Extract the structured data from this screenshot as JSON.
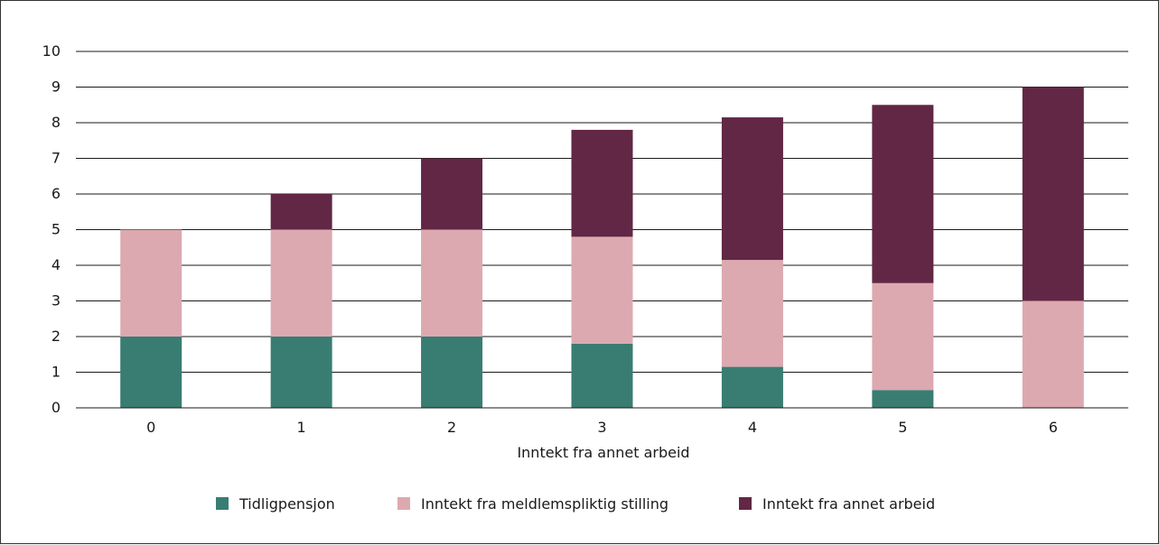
{
  "chart_data": {
    "type": "bar",
    "stacked": true,
    "title": "",
    "xlabel": "Inntekt fra annet arbeid",
    "ylabel": "",
    "ylim": [
      0,
      10
    ],
    "yticks": [
      "0",
      "1",
      "2",
      "3",
      "4",
      "5",
      "6",
      "7",
      "8",
      "9",
      "10"
    ],
    "grid": true,
    "legend_position": "bottom",
    "categories": [
      "0",
      "1",
      "2",
      "3",
      "4",
      "5",
      "6"
    ],
    "series": [
      {
        "name": "Tidligpensjon",
        "color": "#397d72",
        "values": [
          2,
          2,
          2,
          1.8,
          1.15,
          0.5,
          0
        ]
      },
      {
        "name": "Inntekt fra meldlemspliktig stilling",
        "color": "#dca9b0",
        "values": [
          3,
          3,
          3,
          3,
          3,
          3,
          3
        ]
      },
      {
        "name": "Inntekt fra annet arbeid",
        "color": "#622744",
        "values": [
          0,
          1,
          2,
          3,
          4,
          5,
          6
        ]
      }
    ]
  }
}
